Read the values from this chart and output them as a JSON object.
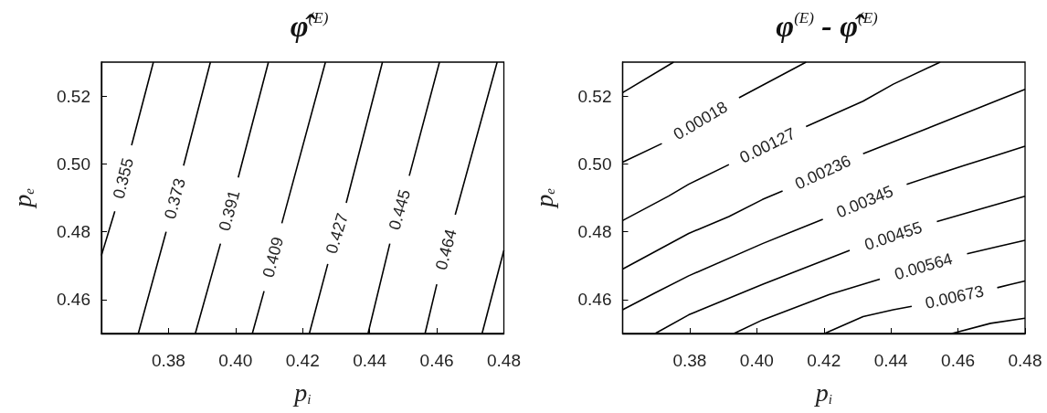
{
  "chart_data": [
    {
      "type": "line",
      "title": "φ̂$^{(E)}$",
      "xlabel": "p$_{i}$",
      "ylabel": "p$_{e}$",
      "xlim": [
        0.36,
        0.48
      ],
      "ylim": [
        0.45,
        0.53
      ],
      "xticks": [
        0.38,
        {
          "value": 0.4,
          "label": "0.40"
        },
        0.42,
        0.44,
        0.46,
        0.48
      ],
      "yticks": [
        0.46,
        0.48,
        {
          "value": 0.5,
          "label": "0.50"
        },
        0.52
      ],
      "marker": "none",
      "series": [
        {
          "name": "0.355",
          "color": "#000000",
          "x": [
            0.36,
            0.364,
            0.3665,
            0.369,
            0.3755
          ],
          "values": [
            0.473,
            0.486,
            null,
            0.5055,
            0.53
          ]
        },
        {
          "name": "0.373",
          "color": "#000000",
          "x": [
            0.371,
            0.3793,
            0.382,
            0.3845,
            0.3925
          ],
          "values": [
            0.45,
            0.48,
            null,
            0.4995,
            0.53
          ]
        },
        {
          "name": "0.391",
          "color": "#000000",
          "x": [
            0.388,
            0.3955,
            0.398,
            0.4008,
            0.4098
          ],
          "values": [
            0.45,
            0.4765,
            null,
            0.496,
            0.53
          ]
        },
        {
          "name": "0.409",
          "color": "#000000",
          "x": [
            0.405,
            0.4085,
            0.4112,
            0.4138,
            0.4268
          ],
          "values": [
            0.45,
            0.4625,
            null,
            0.4825,
            0.53
          ]
        },
        {
          "name": "0.427",
          "color": "#000000",
          "x": [
            0.422,
            0.4275,
            0.4305,
            0.433,
            0.4438
          ],
          "values": [
            0.45,
            0.4705,
            null,
            0.4885,
            0.53
          ]
        },
        {
          "name": "0.445",
          "color": "#000000",
          "x": [
            0.4395,
            0.446,
            0.449,
            0.4518,
            0.4608
          ],
          "values": [
            0.45,
            0.4765,
            null,
            0.4965,
            0.53
          ]
        },
        {
          "name": "0.464",
          "color": "#000000",
          "x": [
            0.4565,
            0.46,
            0.4625,
            0.4655,
            0.478
          ],
          "values": [
            0.45,
            0.4645,
            null,
            0.485,
            0.53
          ]
        },
        {
          "color": "#000000",
          "x": [
            0.4735,
            0.48
          ],
          "values": [
            0.45,
            0.4745
          ]
        }
      ]
    },
    {
      "type": "line",
      "title": "φ$^{(E)}$ - φ̂$^{(E)}$",
      "xlabel": "p$_{i}$",
      "ylabel": "p$_{e}$",
      "xlim": [
        0.36,
        0.48
      ],
      "ylim": [
        0.45,
        0.53
      ],
      "xticks": [
        0.38,
        {
          "value": 0.4,
          "label": "0.40"
        },
        0.42,
        0.44,
        0.46,
        0.48
      ],
      "yticks": [
        0.46,
        0.48,
        {
          "value": 0.5,
          "label": "0.50"
        },
        0.52
      ],
      "marker": "none",
      "series": [
        {
          "color": "#000000",
          "x": [
            0.36,
            0.3752
          ],
          "values": [
            0.521,
            0.53
          ]
        },
        {
          "name": "0.00018",
          "color": "#000000",
          "x": [
            0.36,
            0.3717,
            0.3835,
            0.3947,
            0.4147
          ],
          "values": [
            0.5005,
            0.506,
            null,
            0.5195,
            0.53
          ]
        },
        {
          "name": "0.00127",
          "color": "#000000",
          "x": [
            0.36,
            0.3737,
            0.3797,
            0.3917,
            0.4032,
            0.4147,
            0.4317,
            0.4407,
            0.4547
          ],
          "values": [
            0.4833,
            0.4905,
            0.494,
            0.4998,
            null,
            0.511,
            0.5185,
            0.5235,
            0.53
          ]
        },
        {
          "name": "0.00236",
          "color": "#000000",
          "x": [
            0.36,
            0.3797,
            0.3917,
            0.4017,
            0.4077,
            0.4195,
            0.4317,
            0.4497,
            0.4647,
            0.48
          ],
          "values": [
            0.469,
            0.4795,
            0.4845,
            0.4895,
            0.492,
            null,
            0.503,
            0.51,
            0.5159,
            0.522
          ]
        },
        {
          "name": "0.00345",
          "color": "#000000",
          "x": [
            0.36,
            0.3697,
            0.3797,
            0.4017,
            0.4197,
            0.4322,
            0.4447,
            0.4617,
            0.4717,
            0.48
          ],
          "values": [
            0.457,
            0.462,
            0.467,
            0.4765,
            0.4837,
            null,
            0.494,
            0.4995,
            0.5026,
            0.5052
          ]
        },
        {
          "name": "0.00455",
          "color": "#000000",
          "x": [
            0.3697,
            0.3797,
            0.4017,
            0.4277,
            0.4407,
            0.4537,
            0.4667,
            0.48
          ],
          "values": [
            0.45,
            0.4555,
            0.4645,
            0.4745,
            null,
            0.483,
            0.4867,
            0.4905
          ]
        },
        {
          "name": "0.00564",
          "color": "#000000",
          "x": [
            0.3932,
            0.4017,
            0.4217,
            0.4367,
            0.4502,
            0.4627,
            0.4717,
            0.48
          ],
          "values": [
            0.45,
            0.454,
            0.4615,
            0.466,
            null,
            0.4735,
            0.4756,
            0.4775
          ]
        },
        {
          "name": "0.00673",
          "color": "#000000",
          "x": [
            0.4202,
            0.4317,
            0.4407,
            0.4462,
            0.4642,
            0.4717,
            0.4757,
            0.48
          ],
          "values": [
            0.45,
            0.455,
            0.457,
            0.458,
            null,
            0.4635,
            0.4645,
            0.4655
          ]
        },
        {
          "color": "#000000",
          "x": [
            0.4582,
            0.4697,
            0.48
          ],
          "values": [
            0.45,
            0.453,
            0.4545
          ]
        }
      ]
    }
  ]
}
